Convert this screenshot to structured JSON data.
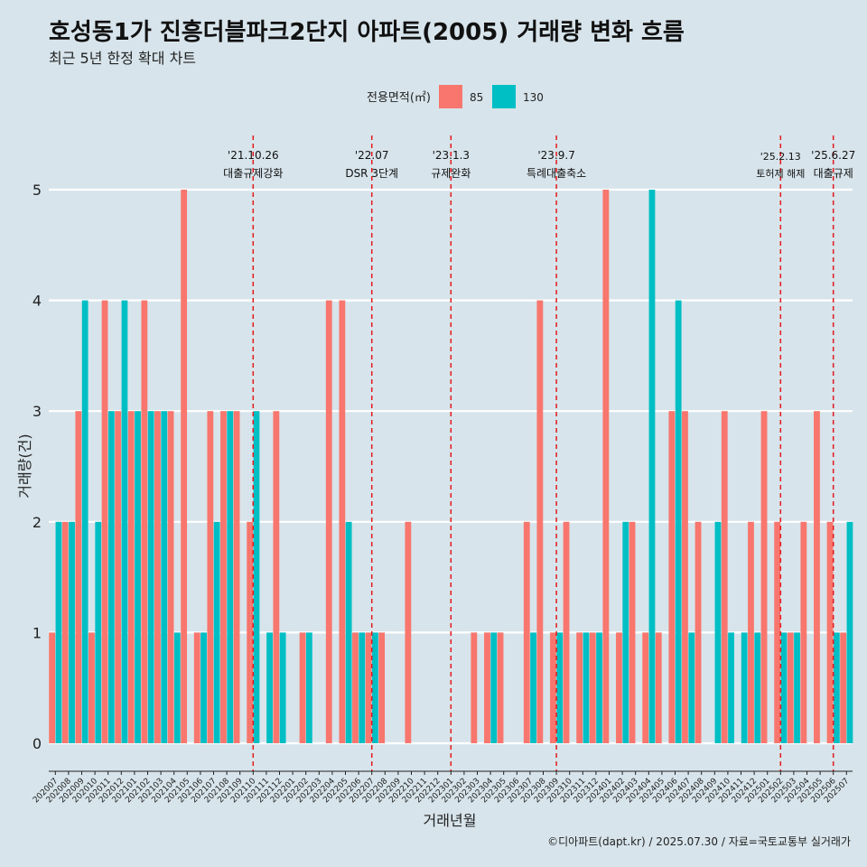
{
  "chart_data": {
    "type": "bar",
    "title": "호성동1가 진흥더블파크2단지 아파트(2005) 거래량 변화 흐름",
    "subtitle": "최근 5년 한정 확대 차트",
    "xlabel": "거래년월",
    "ylabel": "거래량(건)",
    "ylim": [
      0,
      5
    ],
    "yticks": [
      0,
      1,
      2,
      3,
      4,
      5
    ],
    "legend": {
      "title": "전용면적(㎡)",
      "position": "top"
    },
    "series_colors": {
      "85": "#f8766d",
      "130": "#00bfc4"
    },
    "categories": [
      "202007",
      "202008",
      "202009",
      "202010",
      "202011",
      "202012",
      "202101",
      "202102",
      "202103",
      "202104",
      "202105",
      "202106",
      "202107",
      "202108",
      "202109",
      "202110",
      "202111",
      "202112",
      "202201",
      "202202",
      "202203",
      "202204",
      "202205",
      "202206",
      "202207",
      "202208",
      "202209",
      "202210",
      "202211",
      "202212",
      "202301",
      "202302",
      "202303",
      "202304",
      "202305",
      "202306",
      "202307",
      "202308",
      "202309",
      "202310",
      "202311",
      "202312",
      "202401",
      "202402",
      "202403",
      "202404",
      "202405",
      "202406",
      "202407",
      "202408",
      "202409",
      "202410",
      "202411",
      "202412",
      "202501",
      "202502",
      "202503",
      "202504",
      "202505",
      "202506",
      "202507"
    ],
    "series": [
      {
        "name": "85",
        "values": [
          1,
          2,
          3,
          1,
          4,
          3,
          3,
          4,
          3,
          3,
          5,
          1,
          3,
          3,
          3,
          2,
          0,
          3,
          0,
          1,
          0,
          4,
          4,
          1,
          1,
          1,
          0,
          2,
          0,
          0,
          0,
          0,
          1,
          1,
          1,
          0,
          2,
          4,
          1,
          2,
          1,
          1,
          5,
          1,
          2,
          1,
          1,
          3,
          3,
          2,
          0,
          3,
          0,
          2,
          3,
          2,
          1,
          2,
          3,
          2,
          1
        ]
      },
      {
        "name": "130",
        "values": [
          2,
          2,
          4,
          2,
          3,
          4,
          3,
          3,
          3,
          1,
          0,
          1,
          2,
          3,
          0,
          3,
          1,
          1,
          0,
          1,
          0,
          0,
          2,
          1,
          1,
          0,
          0,
          0,
          0,
          0,
          0,
          0,
          0,
          1,
          0,
          0,
          1,
          0,
          1,
          0,
          1,
          1,
          0,
          2,
          0,
          5,
          0,
          4,
          1,
          0,
          2,
          1,
          1,
          1,
          0,
          1,
          1,
          0,
          0,
          1,
          2
        ]
      }
    ],
    "annotations": [
      {
        "category": "202110",
        "date": "'21.10.26",
        "label": "대출규제강화"
      },
      {
        "category": "202207",
        "date": "'22.07",
        "label": "DSR 3단계"
      },
      {
        "category": "202301",
        "date": "'23.1.3",
        "label": "규제완화"
      },
      {
        "category": "202309",
        "date": "'23.9.7",
        "label": "특례대출축소"
      },
      {
        "category": "202502",
        "date": "'25.2.13",
        "label": "토허제 해제"
      },
      {
        "category": "202506",
        "date": "'25.6.27",
        "label": "대출규제"
      }
    ],
    "caption": "©디아파트(dapt.kr) / 2025.07.30 / 자료=국토교통부 실거래가"
  },
  "colors": {
    "background": "#d7e4eb",
    "gridline": "#ffffff",
    "annotation_line": "#e41a1c"
  }
}
